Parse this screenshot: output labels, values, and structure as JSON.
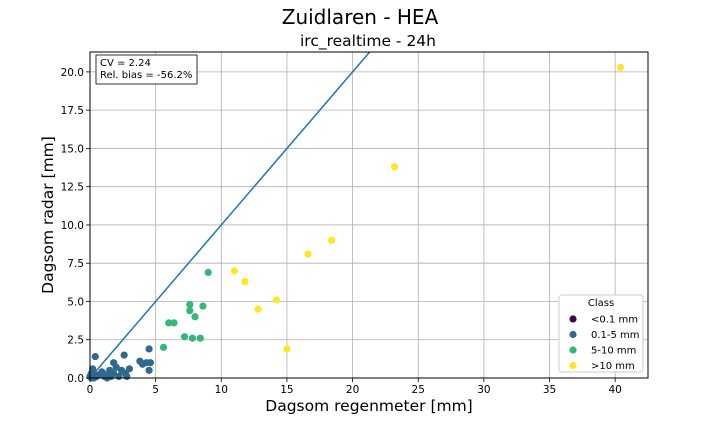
{
  "chart_data": {
    "type": "scatter",
    "title": "Zuidlaren - HEA",
    "subtitle": "irc_realtime - 24h",
    "xlabel": "Dagsom regenmeter [mm]",
    "ylabel": "Dagsom radar [mm]",
    "xlim": [
      0,
      42.5
    ],
    "ylim": [
      0,
      21.3
    ],
    "xticks": [
      0,
      5,
      10,
      15,
      20,
      25,
      30,
      35,
      40
    ],
    "yticks": [
      0.0,
      2.5,
      5.0,
      7.5,
      10.0,
      12.5,
      15.0,
      17.5,
      20.0
    ],
    "grid": true,
    "stats": [
      "CV = 2.24",
      "Rel. bias = -56.2%"
    ],
    "reference_line": {
      "slope": 1,
      "intercept": 0,
      "color": "#1f77b4"
    },
    "legend": {
      "title": "Class",
      "placement": "lower-right"
    },
    "series": [
      {
        "name": "<0.1 mm",
        "color": "#440154",
        "points": []
      },
      {
        "name": "0.1-5 mm",
        "color": "#31688e",
        "points": [
          [
            0.0,
            0.1
          ],
          [
            0.1,
            0.3
          ],
          [
            0.2,
            0.6
          ],
          [
            0.1,
            0.0
          ],
          [
            0.3,
            0.0
          ],
          [
            0.4,
            1.4
          ],
          [
            0.5,
            0.1
          ],
          [
            0.6,
            0.2
          ],
          [
            0.8,
            0.2
          ],
          [
            0.9,
            0.4
          ],
          [
            1.0,
            0.3
          ],
          [
            1.1,
            0.1
          ],
          [
            1.3,
            0.0
          ],
          [
            1.4,
            0.2
          ],
          [
            1.5,
            0.5
          ],
          [
            1.6,
            0.1
          ],
          [
            1.8,
            0.3
          ],
          [
            1.8,
            1.0
          ],
          [
            2.0,
            0.7
          ],
          [
            2.2,
            0.1
          ],
          [
            2.4,
            0.5
          ],
          [
            2.6,
            1.5
          ],
          [
            2.7,
            0.3
          ],
          [
            2.8,
            0.1
          ],
          [
            3.0,
            0.6
          ],
          [
            3.8,
            1.1
          ],
          [
            4.0,
            0.9
          ],
          [
            4.3,
            1.0
          ],
          [
            4.5,
            1.9
          ],
          [
            4.5,
            0.5
          ],
          [
            4.6,
            1.0
          ]
        ]
      },
      {
        "name": "5-10 mm",
        "color": "#35b779",
        "points": [
          [
            5.6,
            2.0
          ],
          [
            6.0,
            3.6
          ],
          [
            6.4,
            3.6
          ],
          [
            7.2,
            2.7
          ],
          [
            7.6,
            4.8
          ],
          [
            7.6,
            4.4
          ],
          [
            7.8,
            2.6
          ],
          [
            8.0,
            4.0
          ],
          [
            8.4,
            2.6
          ],
          [
            8.6,
            4.7
          ],
          [
            9.0,
            6.9
          ]
        ]
      },
      {
        "name": ">10 mm",
        "color": "#fde725",
        "points": [
          [
            11.0,
            7.0
          ],
          [
            11.8,
            6.3
          ],
          [
            12.8,
            4.5
          ],
          [
            14.2,
            5.1
          ],
          [
            15.0,
            1.9
          ],
          [
            16.6,
            8.1
          ],
          [
            18.4,
            9.0
          ],
          [
            23.2,
            13.8
          ],
          [
            40.4,
            20.3
          ]
        ]
      }
    ]
  }
}
